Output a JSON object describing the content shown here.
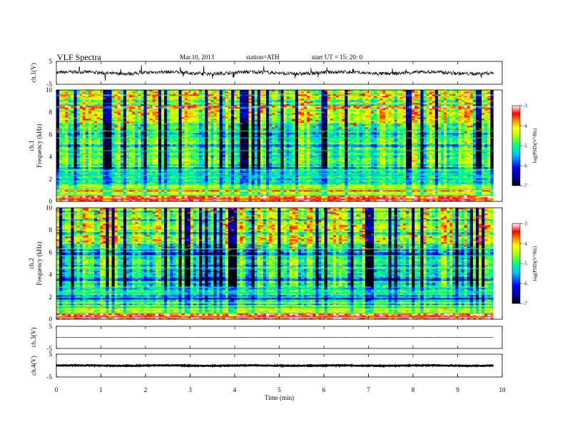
{
  "header": {
    "title": "VLF  Spectra",
    "date": "Mar.10, 2013",
    "station": "station=ATH",
    "start": "start  UT  =    15: 20: 0"
  },
  "chart_data": [
    {
      "type": "line",
      "panel": "ch1-waveform",
      "ylabel": "ch.1(V)",
      "ylim": [
        -5,
        5
      ],
      "yticks": [
        "5",
        "-5"
      ],
      "xlim": [
        0,
        10
      ]
    },
    {
      "type": "heatmap",
      "panel": "ch1-spectrogram",
      "ylabel_channel": "ch.1",
      "ylabel": "Frequency  (kHz)",
      "ylim": [
        0,
        10
      ],
      "yticks": [
        "0",
        "2",
        "4",
        "6",
        "8",
        "10"
      ],
      "xlim": [
        0,
        9.8
      ],
      "colorbar": {
        "label": "log(PSD)(V²/Hz)",
        "range": [
          -7,
          -3
        ],
        "ticks": [
          "-3",
          "-4",
          "-5",
          "-6",
          "-7"
        ]
      }
    },
    {
      "type": "heatmap",
      "panel": "ch2-spectrogram",
      "ylabel_channel": "ch.2",
      "ylabel": "Frequency  (kHz)",
      "ylim": [
        0,
        10
      ],
      "yticks": [
        "0",
        "2",
        "4",
        "6",
        "8",
        "10"
      ],
      "xlim": [
        0,
        9.8
      ],
      "colorbar": {
        "label": "log(PSD)(V²/Hz)",
        "range": [
          -7,
          -3
        ],
        "ticks": [
          "-3",
          "-4",
          "-5",
          "-6",
          "-7"
        ]
      }
    },
    {
      "type": "line",
      "panel": "ch3-waveform",
      "ylabel": "ch.3(V)",
      "ylim": [
        -5,
        5
      ],
      "yticks": [
        "5",
        "-5"
      ],
      "xlim": [
        0,
        10
      ]
    },
    {
      "type": "line",
      "panel": "ch4-waveform",
      "ylabel": "ch.4(V)",
      "ylim": [
        -5,
        5
      ],
      "yticks": [
        "5",
        "-5"
      ],
      "xlim": [
        0,
        10
      ]
    }
  ],
  "xaxis": {
    "label": "Time  (min)",
    "ticks": [
      "0",
      "1",
      "2",
      "3",
      "4",
      "5",
      "6",
      "7",
      "8",
      "9",
      "10"
    ]
  }
}
